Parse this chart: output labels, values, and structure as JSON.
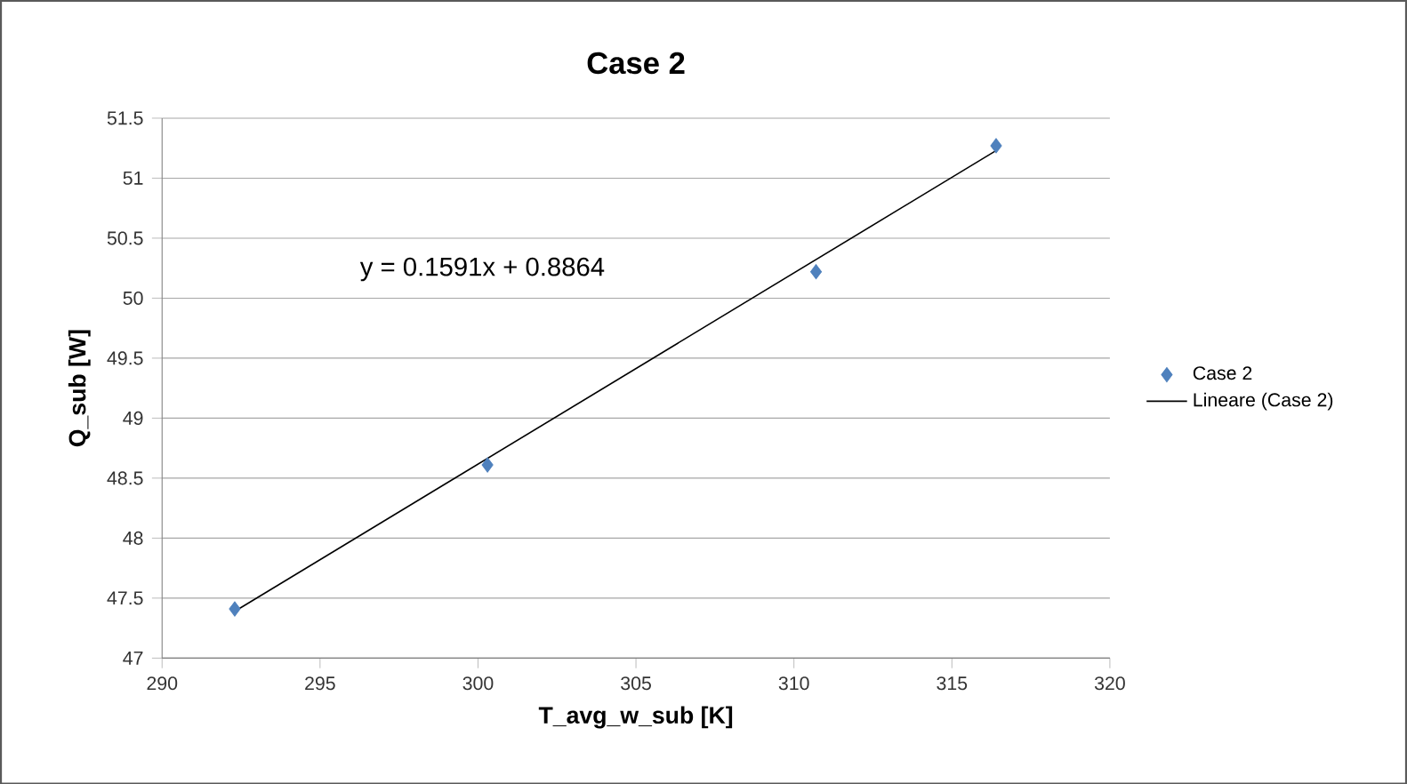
{
  "chart_data": {
    "type": "scatter",
    "title": "Case 2",
    "xlabel": "T_avg_w_sub [K]",
    "ylabel": "Q_sub [W]",
    "annotations": [
      "y = 0.1591x + 0.8864"
    ],
    "series": [
      {
        "name": "Case 2",
        "color": "#4f81bd",
        "marker": "diamond",
        "x": [
          292.3,
          300.3,
          310.7,
          316.4
        ],
        "values": [
          47.41,
          48.61,
          50.22,
          51.27
        ]
      },
      {
        "name": "Lineare (Case 2)",
        "type": "line",
        "color": "#000000",
        "marker": "none",
        "line_style": "solid",
        "x": [
          292.3,
          316.4
        ],
        "values": [
          47.39,
          51.23
        ]
      }
    ],
    "xlim": [
      290,
      320
    ],
    "xticks": [
      290,
      295,
      300,
      305,
      310,
      315,
      320
    ],
    "ylim": [
      47,
      51.5
    ],
    "yticks": [
      47,
      47.5,
      48,
      48.5,
      49,
      49.5,
      50,
      50.5,
      51,
      51.5
    ],
    "grid": "y",
    "legend": "right"
  }
}
